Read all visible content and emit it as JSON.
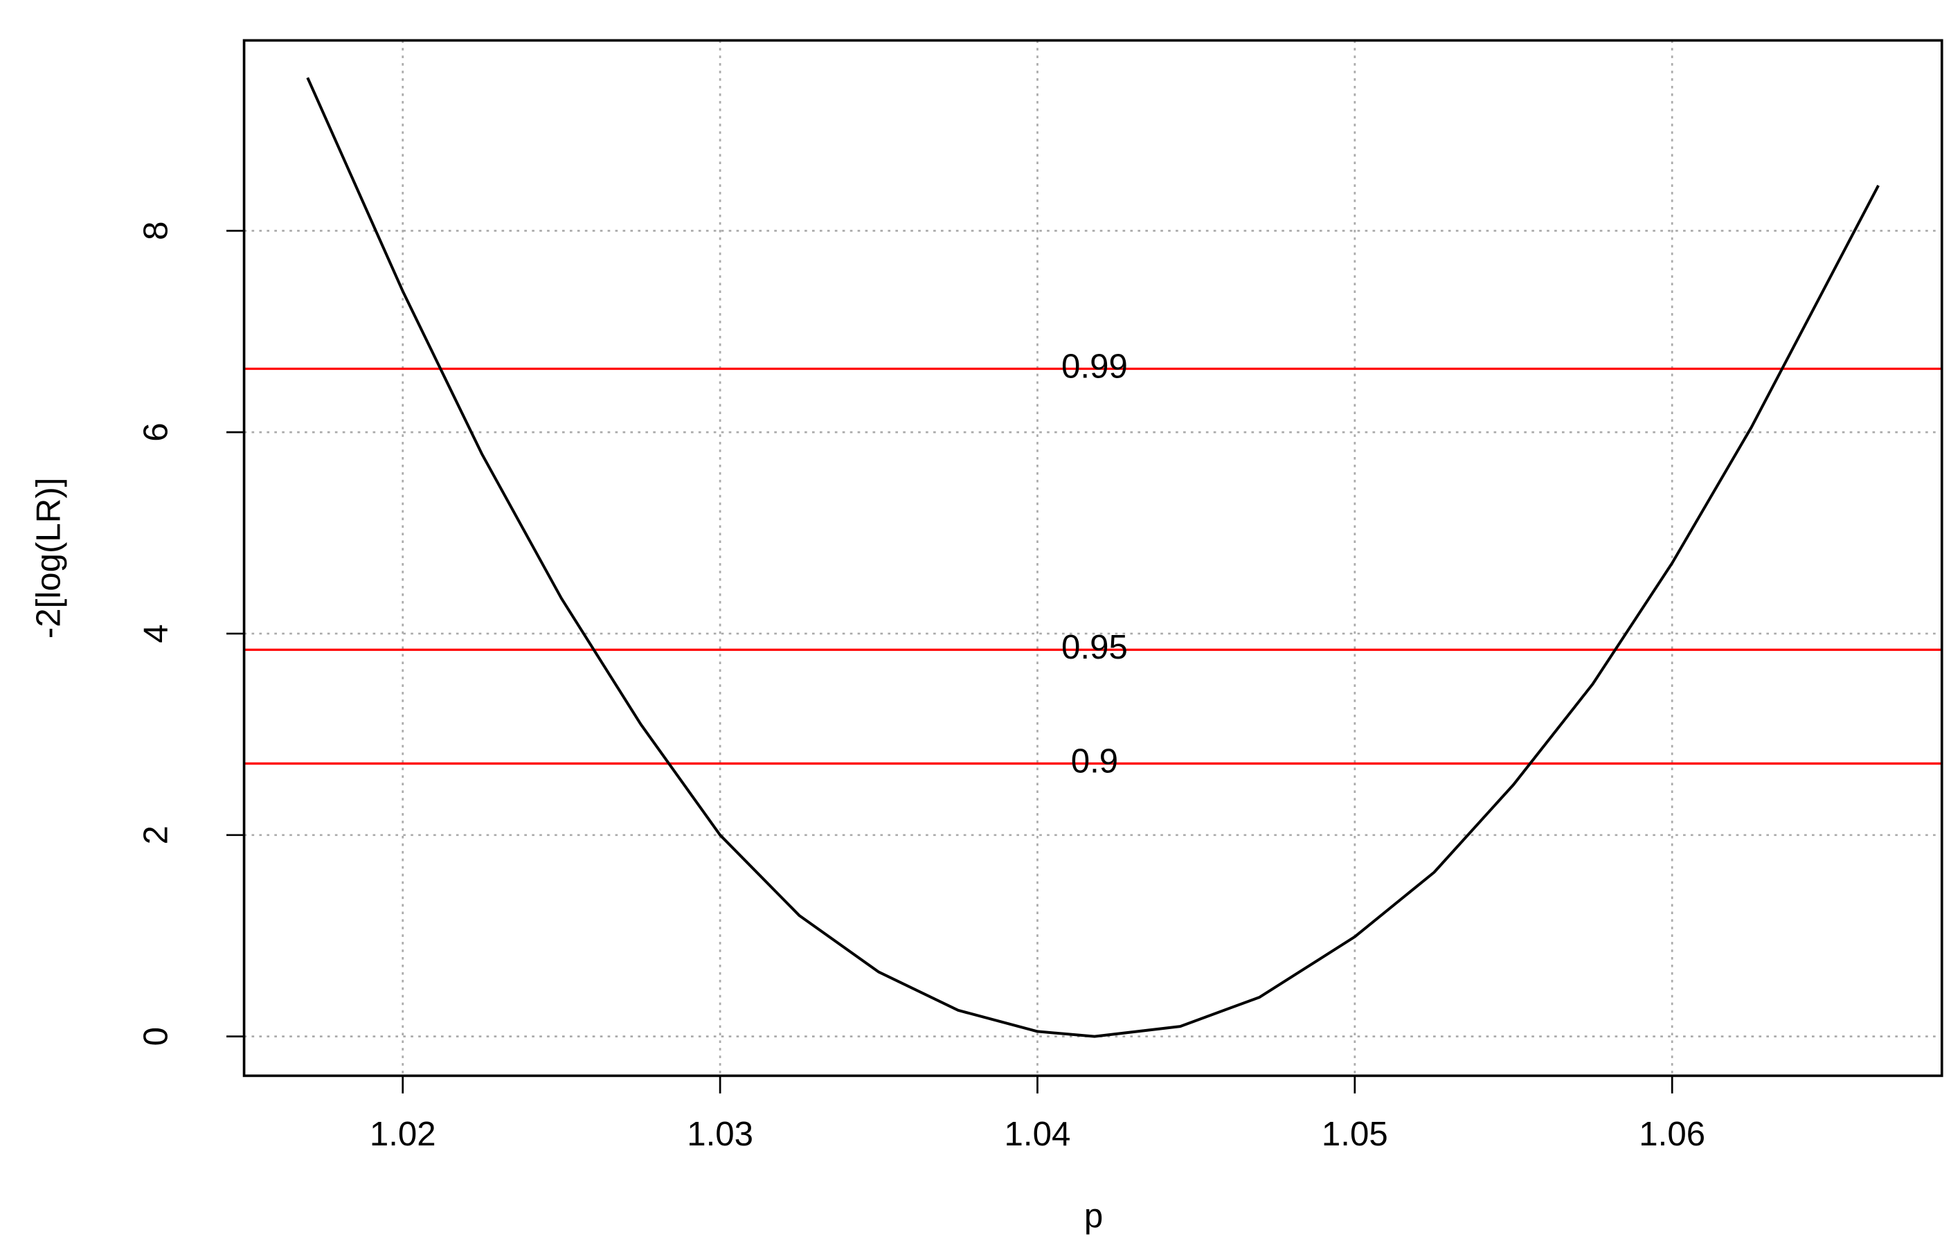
{
  "chart_data": {
    "type": "line",
    "x_label": "p",
    "y_label": "-2[log(LR)]",
    "x": [
      1.017,
      1.02,
      1.0225,
      1.025,
      1.0275,
      1.03,
      1.0325,
      1.035,
      1.0375,
      1.04,
      1.0418,
      1.0445,
      1.047,
      1.05,
      1.0525,
      1.055,
      1.0575,
      1.06,
      1.0625,
      1.065,
      1.0665
    ],
    "values": [
      9.52,
      7.4,
      5.78,
      4.35,
      3.1,
      2.0,
      1.2,
      0.64,
      0.26,
      0.05,
      0,
      0.1,
      0.39,
      0.99,
      1.63,
      2.5,
      3.5,
      4.7,
      6.05,
      7.55,
      8.45
    ],
    "color": "#000000",
    "reference_lines": [
      {
        "value": 6.63,
        "label": "0.99",
        "color": "#ff0000"
      },
      {
        "value": 3.84,
        "label": "0.95",
        "color": "#ff0000"
      },
      {
        "value": 2.71,
        "label": "0.9",
        "color": "#ff0000"
      }
    ],
    "reference_label_x": 1.0418,
    "xlim": [
      1.015,
      1.0685
    ],
    "ylim": [
      -0.39,
      9.89
    ],
    "xticks": [
      1.02,
      1.03,
      1.04,
      1.05,
      1.06
    ],
    "yticks": [
      0,
      2,
      4,
      6,
      8
    ],
    "grid": true
  }
}
